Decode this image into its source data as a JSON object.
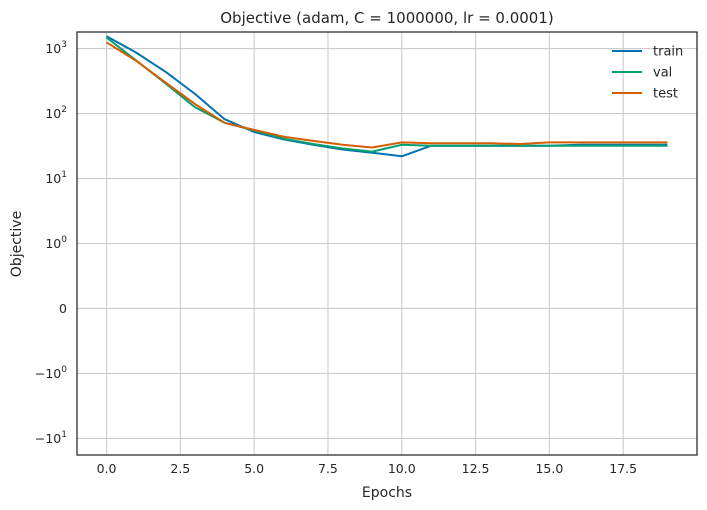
{
  "chart_data": {
    "type": "line",
    "title": "Objective (adam, C = 1000000, lr = 0.0001)",
    "xlabel": "Epochs",
    "ylabel": "Objective",
    "yscale": "symlog",
    "xlim": [
      -1,
      20
    ],
    "ylim": [
      -18,
      1800
    ],
    "grid": true,
    "legend_position": "top-right",
    "x": [
      0,
      1,
      2,
      3,
      4,
      5,
      6,
      7,
      8,
      9,
      10,
      11,
      12,
      13,
      14,
      15,
      16,
      17,
      18,
      19
    ],
    "x_ticks": [
      0,
      2.5,
      5,
      7.5,
      10,
      12.5,
      15,
      17.5
    ],
    "x_tick_labels": [
      "0.0",
      "2.5",
      "5.0",
      "7.5",
      "10.0",
      "12.5",
      "15.0",
      "17.5"
    ],
    "y_ticks": [
      {
        "value": 1000,
        "base": "10",
        "exp": "3"
      },
      {
        "value": 100,
        "base": "10",
        "exp": "2"
      },
      {
        "value": 10,
        "base": "10",
        "exp": "1"
      },
      {
        "value": 1,
        "base": "10",
        "exp": "0"
      },
      {
        "value": 0,
        "base": "0",
        "exp": ""
      },
      {
        "value": -1,
        "base": "−10",
        "exp": "0"
      },
      {
        "value": -10,
        "base": "−10",
        "exp": "1"
      }
    ],
    "series": [
      {
        "name": "train",
        "color": "#0173b2",
        "values": [
          1550,
          870,
          440,
          200,
          82,
          52,
          40,
          33,
          28,
          25,
          22,
          32,
          32,
          32,
          32,
          32,
          33,
          33,
          33,
          33
        ]
      },
      {
        "name": "val",
        "color": "#029e73",
        "values": [
          1480,
          660,
          290,
          125,
          72,
          55,
          41,
          34,
          29,
          26,
          33,
          32,
          32,
          32,
          32,
          32,
          32,
          32,
          32,
          32
        ]
      },
      {
        "name": "test",
        "color": "#d55e00",
        "values": [
          1250,
          650,
          300,
          140,
          72,
          56,
          44,
          38,
          33,
          30,
          36,
          35,
          35,
          35,
          34,
          36,
          36,
          36,
          36,
          36
        ]
      }
    ]
  }
}
